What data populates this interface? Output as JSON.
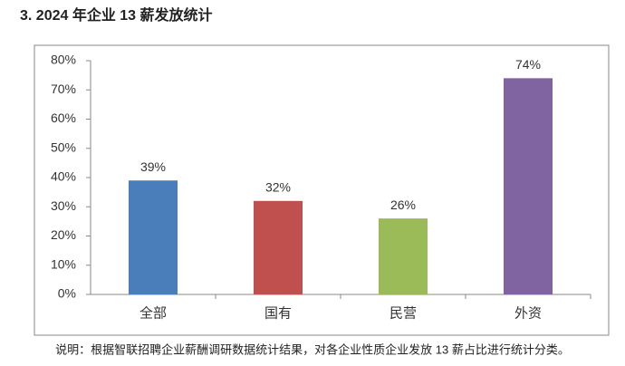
{
  "chart_data": {
    "type": "bar",
    "title": "3.  2024 年企业 13 薪发放统计",
    "categories": [
      "全部",
      "国有",
      "民营",
      "外资"
    ],
    "values": [
      39,
      32,
      26,
      74
    ],
    "value_labels": [
      "39%",
      "32%",
      "26%",
      "74%"
    ],
    "colors": [
      "#4a7ebb",
      "#c0504d",
      "#9bbb59",
      "#8064a2"
    ],
    "ylim": [
      0,
      80
    ],
    "yticks": [
      {
        "value": 0,
        "label": "0%"
      },
      {
        "value": 10,
        "label": "10%"
      },
      {
        "value": 20,
        "label": "20%"
      },
      {
        "value": 30,
        "label": "30%"
      },
      {
        "value": 40,
        "label": "40%"
      },
      {
        "value": 50,
        "label": "50%"
      },
      {
        "value": 60,
        "label": "60%"
      },
      {
        "value": 70,
        "label": "70%"
      },
      {
        "value": 80,
        "label": "80%"
      }
    ],
    "grid": false,
    "note": "说明：根据智联招聘企业薪酬调研数据统计结果，对各企业性质企业发放 13 薪占比进行统计分类。"
  }
}
